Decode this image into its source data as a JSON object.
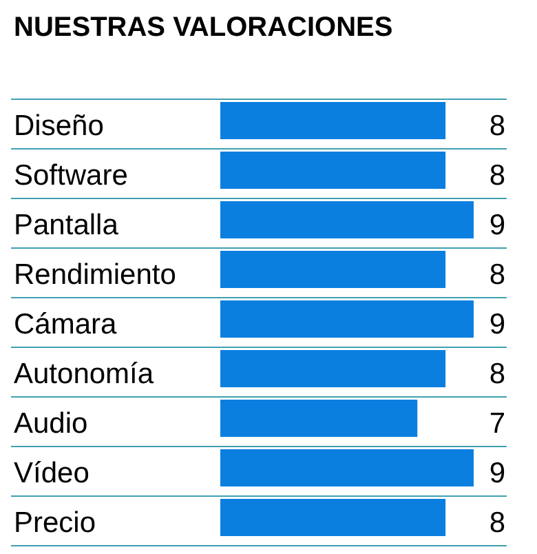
{
  "chart_data": {
    "type": "bar",
    "orientation": "horizontal",
    "title": "NUESTRAS VALORACIONES",
    "categories": [
      "Diseño",
      "Software",
      "Pantalla",
      "Rendimiento",
      "Cámara",
      "Autonomía",
      "Audio",
      "Vídeo",
      "Precio"
    ],
    "values": [
      8,
      8,
      9,
      8,
      9,
      8,
      7,
      9,
      8
    ],
    "color": "#0a7fe0",
    "data_labels": true,
    "grid": true
  }
}
